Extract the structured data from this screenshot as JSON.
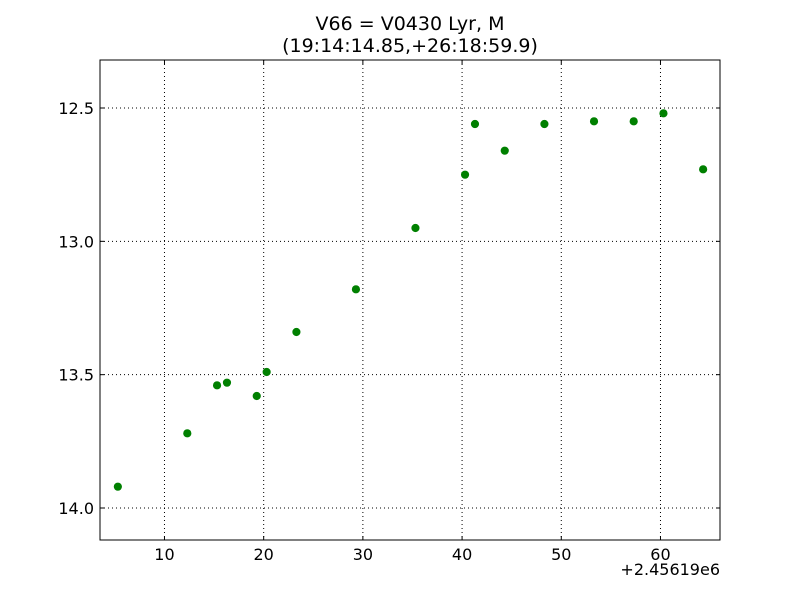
{
  "chart_data": {
    "type": "scatter",
    "title": "V66 = V0430 Lyr, M",
    "subtitle": "(19:14:14.85,+26:18:59.9)",
    "xlabel": "",
    "ylabel": "",
    "x_offset_label": "+2.45619e6",
    "xlim": [
      3.5,
      66
    ],
    "ylim": [
      12.32,
      14.12
    ],
    "y_inverted": true,
    "grid": true,
    "grid_style": "dotted",
    "x_ticks": [
      10,
      20,
      30,
      40,
      50,
      60
    ],
    "x_tick_labels": [
      "10",
      "20",
      "30",
      "40",
      "50",
      "60"
    ],
    "y_ticks": [
      12.5,
      13.0,
      13.5,
      14.0
    ],
    "y_tick_labels": [
      "12.5",
      "13.0",
      "13.5",
      "14.0"
    ],
    "marker_color": "#008000",
    "points": [
      {
        "x": 5.3,
        "y": 13.92
      },
      {
        "x": 12.3,
        "y": 13.72
      },
      {
        "x": 15.3,
        "y": 13.54
      },
      {
        "x": 16.3,
        "y": 13.53
      },
      {
        "x": 19.3,
        "y": 13.58
      },
      {
        "x": 20.3,
        "y": 13.49
      },
      {
        "x": 23.3,
        "y": 13.34
      },
      {
        "x": 29.3,
        "y": 13.18
      },
      {
        "x": 35.3,
        "y": 12.95
      },
      {
        "x": 40.3,
        "y": 12.75
      },
      {
        "x": 41.3,
        "y": 12.56
      },
      {
        "x": 44.3,
        "y": 12.66
      },
      {
        "x": 48.3,
        "y": 12.56
      },
      {
        "x": 53.3,
        "y": 12.55
      },
      {
        "x": 57.3,
        "y": 12.55
      },
      {
        "x": 60.3,
        "y": 12.52
      },
      {
        "x": 64.3,
        "y": 12.73
      }
    ]
  }
}
